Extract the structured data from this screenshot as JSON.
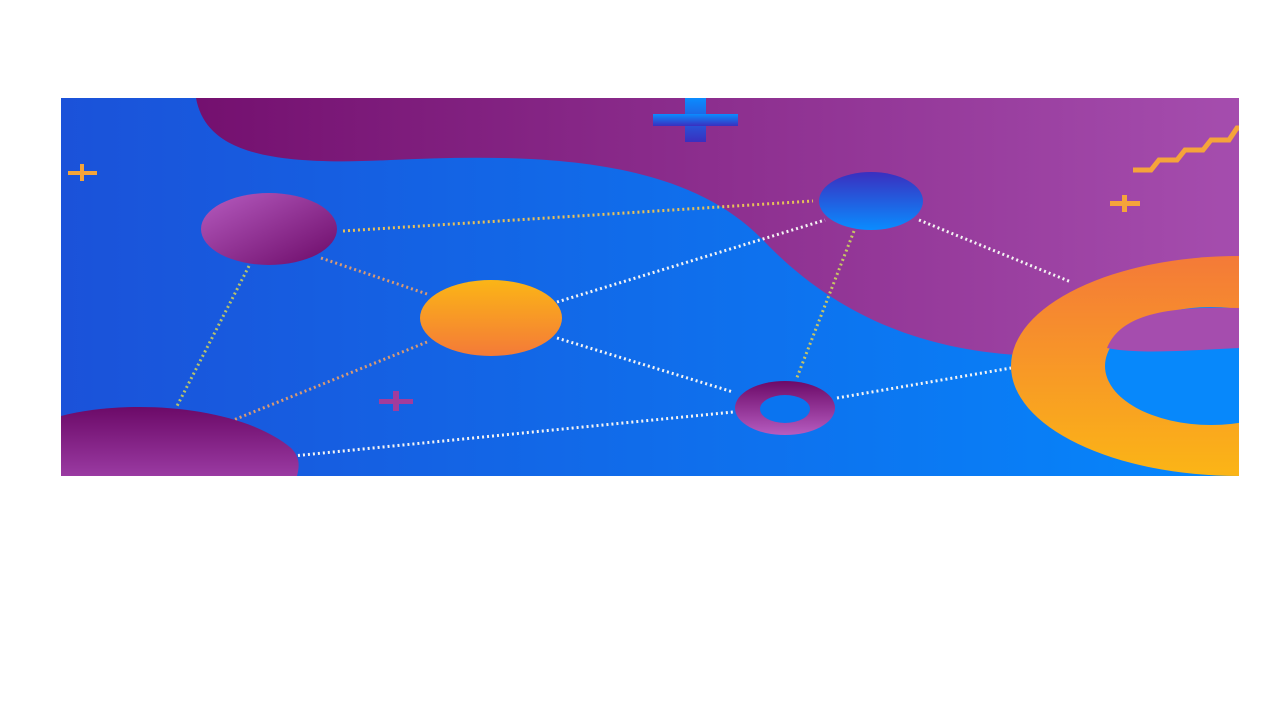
{
  "slide": {
    "background": "#ffffff"
  },
  "banner": {
    "description_icon": "network-graph-illustration",
    "colors": {
      "blue_left": "#1b52d9",
      "blue_right": "#0587fc",
      "purple_dark": "#74106f",
      "purple_light": "#a54dae",
      "orange": "#f58a2f",
      "yellow": "#fbb516",
      "white": "#ffffff"
    },
    "elements": [
      "purple-wave-shape",
      "large-plus-icon",
      "small-plus-icon",
      "zigzag-line-icon",
      "node-purple-sphere",
      "node-blue-sphere",
      "node-orange-sphere",
      "node-purple-ring",
      "orange-ring-shape",
      "purple-half-sphere",
      "dotted-connector-lines"
    ]
  }
}
